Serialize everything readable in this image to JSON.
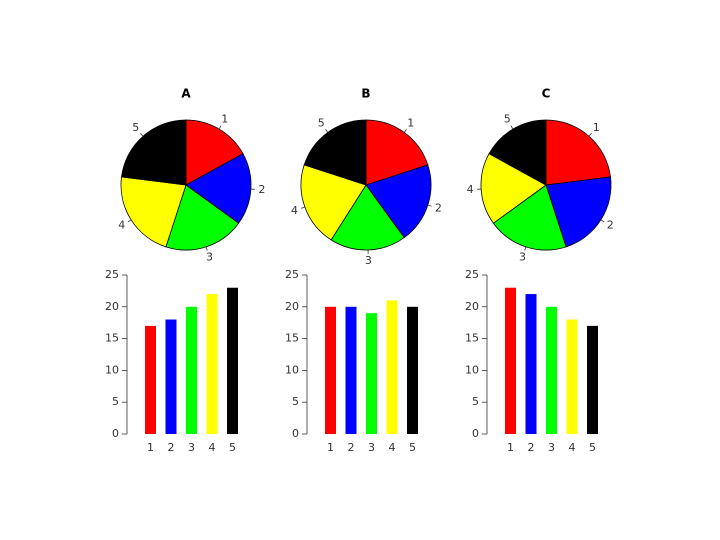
{
  "chart_data": [
    {
      "type": "pie",
      "title": "A",
      "categories": [
        "1",
        "2",
        "3",
        "4",
        "5"
      ],
      "values": [
        17,
        18,
        20,
        22,
        23
      ],
      "colors": [
        "#ff0000",
        "#0000ff",
        "#00ff00",
        "#ffff00",
        "#000000"
      ]
    },
    {
      "type": "pie",
      "title": "B",
      "categories": [
        "1",
        "2",
        "3",
        "4",
        "5"
      ],
      "values": [
        20,
        20,
        19,
        21,
        20
      ],
      "colors": [
        "#ff0000",
        "#0000ff",
        "#00ff00",
        "#ffff00",
        "#000000"
      ]
    },
    {
      "type": "pie",
      "title": "C",
      "categories": [
        "1",
        "2",
        "3",
        "4",
        "5"
      ],
      "values": [
        23,
        22,
        20,
        18,
        17
      ],
      "colors": [
        "#ff0000",
        "#0000ff",
        "#00ff00",
        "#ffff00",
        "#000000"
      ]
    },
    {
      "type": "bar",
      "categories": [
        "1",
        "2",
        "3",
        "4",
        "5"
      ],
      "values": [
        17,
        18,
        20,
        22,
        23
      ],
      "colors": [
        "#ff0000",
        "#0000ff",
        "#00ff00",
        "#ffff00",
        "#000000"
      ],
      "ylim": [
        0,
        25
      ],
      "yticks": [
        0,
        5,
        10,
        15,
        20,
        25
      ]
    },
    {
      "type": "bar",
      "categories": [
        "1",
        "2",
        "3",
        "4",
        "5"
      ],
      "values": [
        20,
        20,
        19,
        21,
        20
      ],
      "colors": [
        "#ff0000",
        "#0000ff",
        "#00ff00",
        "#ffff00",
        "#000000"
      ],
      "ylim": [
        0,
        25
      ],
      "yticks": [
        0,
        5,
        10,
        15,
        20,
        25
      ]
    },
    {
      "type": "bar",
      "categories": [
        "1",
        "2",
        "3",
        "4",
        "5"
      ],
      "values": [
        23,
        22,
        20,
        18,
        17
      ],
      "colors": [
        "#ff0000",
        "#0000ff",
        "#00ff00",
        "#ffff00",
        "#000000"
      ],
      "ylim": [
        0,
        25
      ],
      "yticks": [
        0,
        5,
        10,
        15,
        20,
        25
      ]
    }
  ]
}
